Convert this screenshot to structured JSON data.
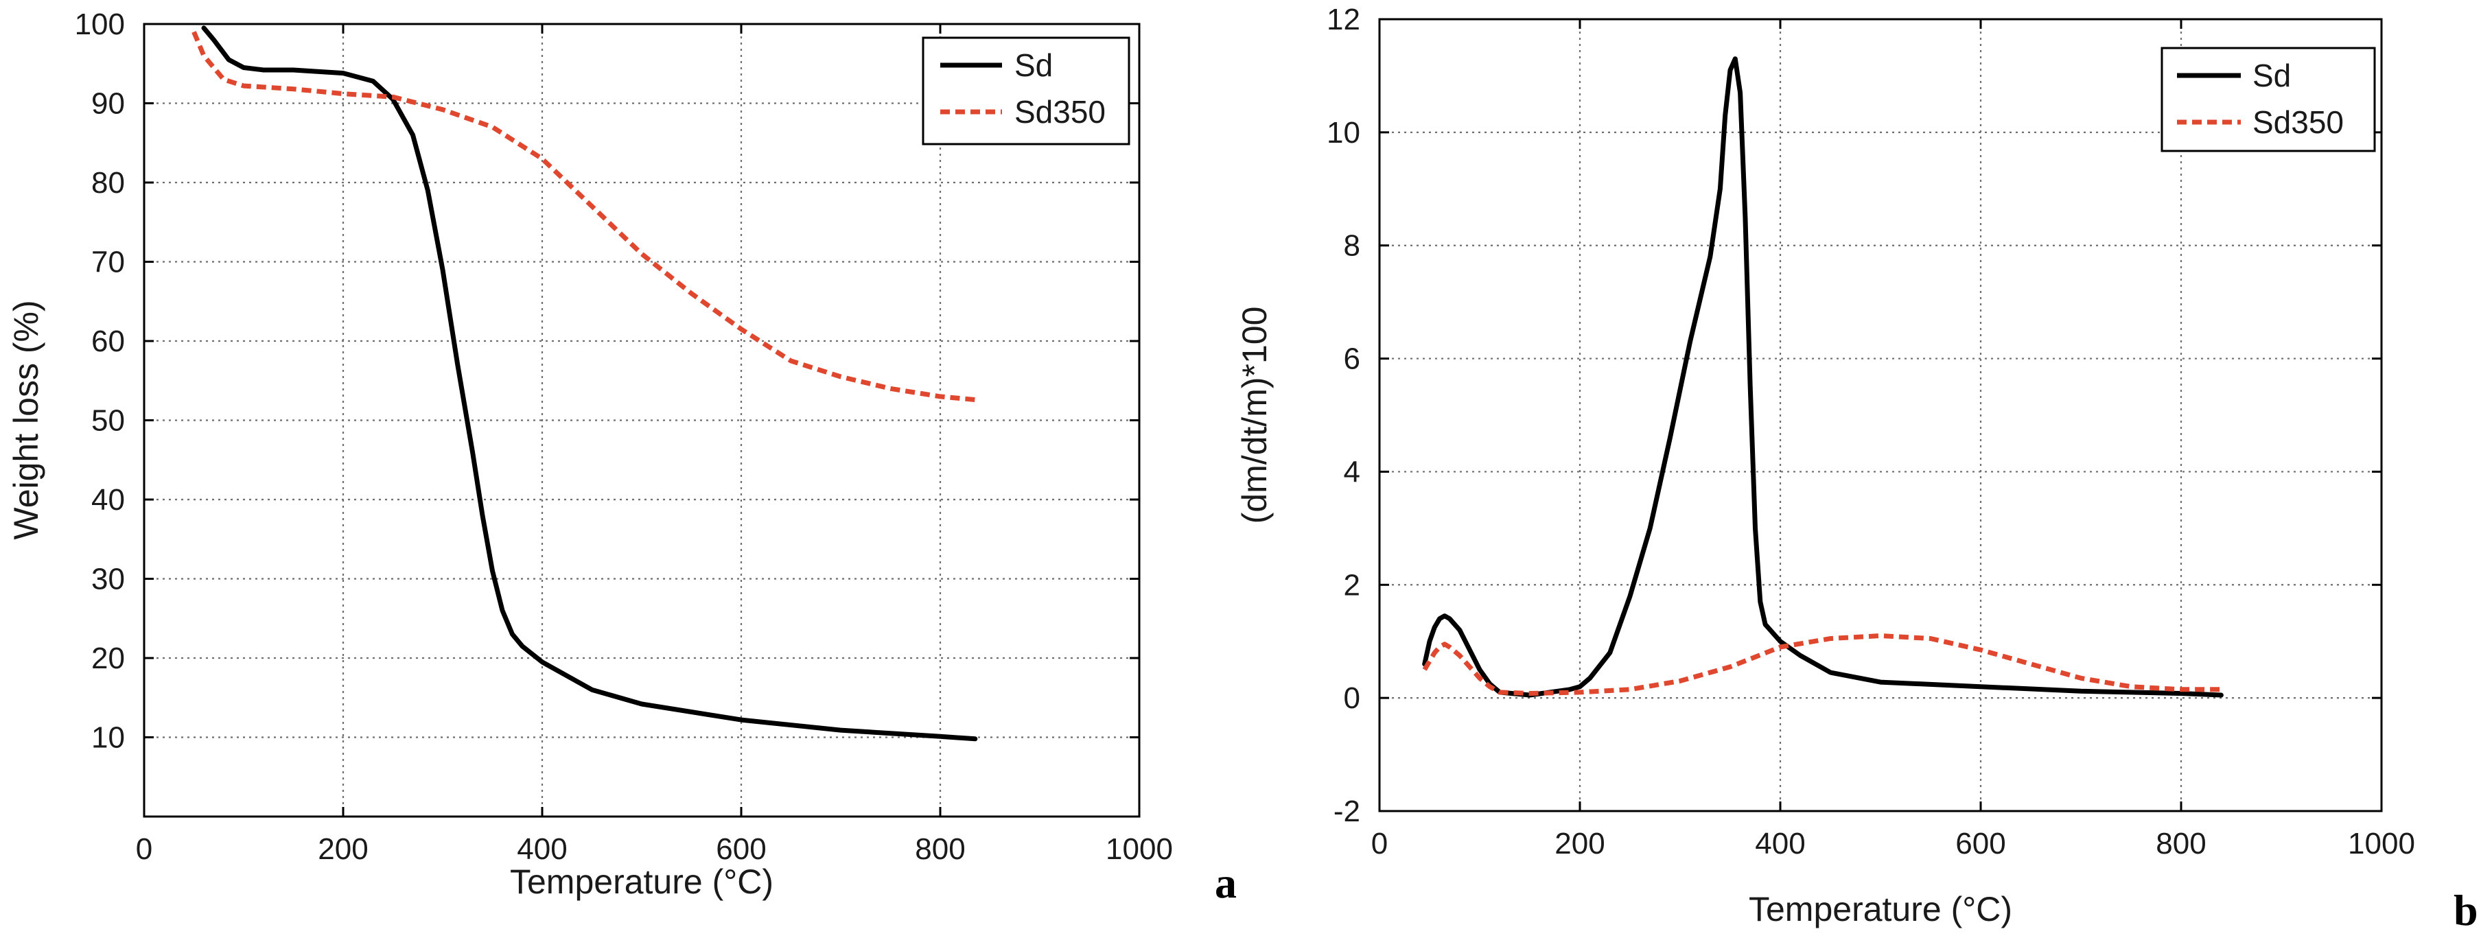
{
  "chart_data": [
    {
      "type": "line",
      "panel_label": "a",
      "title": "",
      "xlabel": "Temperature (°C)",
      "ylabel": "Weight loss (%)",
      "xlim": [
        0,
        1000
      ],
      "ylim": [
        0,
        100
      ],
      "xticks": [
        0,
        200,
        400,
        600,
        800,
        1000
      ],
      "yticks": [
        10,
        20,
        30,
        40,
        50,
        60,
        70,
        80,
        90,
        100
      ],
      "xtick_labels": [
        "0",
        "200",
        "400",
        "600",
        "800",
        "1000"
      ],
      "ytick_labels": [
        "10",
        "20",
        "30",
        "40",
        "50",
        "60",
        "70",
        "80",
        "90",
        "100"
      ],
      "grid": true,
      "legend_position": "top-right",
      "series": [
        {
          "name": "Sd",
          "color": "#000000",
          "style": "solid",
          "x": [
            60,
            70,
            85,
            100,
            120,
            150,
            200,
            230,
            250,
            270,
            285,
            300,
            315,
            330,
            340,
            350,
            360,
            370,
            380,
            400,
            450,
            500,
            600,
            700,
            800,
            835
          ],
          "y": [
            99.5,
            98,
            95.5,
            94.5,
            94.2,
            94.2,
            93.8,
            92.8,
            90.5,
            86,
            79,
            69,
            57,
            46,
            38,
            31,
            26,
            23,
            21.5,
            19.5,
            16,
            14.2,
            12.2,
            10.9,
            10.1,
            9.8
          ]
        },
        {
          "name": "Sd350",
          "color": "#e0472f",
          "style": "dashed",
          "x": [
            50,
            60,
            80,
            100,
            150,
            200,
            250,
            300,
            350,
            400,
            450,
            500,
            550,
            600,
            650,
            700,
            750,
            800,
            835
          ],
          "y": [
            99,
            96,
            93,
            92.2,
            91.8,
            91.2,
            90.8,
            89.2,
            87,
            83,
            77,
            71,
            66,
            61.5,
            57.5,
            55.5,
            54,
            53,
            52.6
          ]
        }
      ]
    },
    {
      "type": "line",
      "panel_label": "b",
      "title": "",
      "xlabel": "Temperature (°C)",
      "ylabel": "(dm/dt/m)*100",
      "xlim": [
        0,
        1000
      ],
      "ylim": [
        -2,
        12
      ],
      "xticks": [
        0,
        200,
        400,
        600,
        800,
        1000
      ],
      "yticks": [
        -2,
        0,
        2,
        4,
        6,
        8,
        10,
        12
      ],
      "xtick_labels": [
        "0",
        "200",
        "400",
        "600",
        "800",
        "1000"
      ],
      "ytick_labels": [
        "-2",
        "0",
        "2",
        "4",
        "6",
        "8",
        "10",
        "12"
      ],
      "grid": true,
      "legend_position": "top-right",
      "series": [
        {
          "name": "Sd",
          "color": "#000000",
          "style": "solid",
          "x": [
            45,
            50,
            55,
            60,
            65,
            70,
            80,
            90,
            100,
            110,
            120,
            150,
            190,
            200,
            210,
            230,
            250,
            270,
            290,
            310,
            330,
            340,
            345,
            350,
            355,
            360,
            365,
            370,
            375,
            380,
            385,
            390,
            400,
            420,
            450,
            500,
            600,
            700,
            800,
            840
          ],
          "y": [
            0.6,
            1.0,
            1.25,
            1.4,
            1.45,
            1.4,
            1.2,
            0.85,
            0.5,
            0.25,
            0.1,
            0.05,
            0.15,
            0.2,
            0.35,
            0.8,
            1.8,
            3.0,
            4.6,
            6.3,
            7.8,
            9.0,
            10.3,
            11.1,
            11.3,
            10.7,
            8.5,
            5.5,
            3.0,
            1.7,
            1.3,
            1.2,
            1.0,
            0.75,
            0.45,
            0.28,
            0.2,
            0.12,
            0.08,
            0.05
          ]
        },
        {
          "name": "Sd350",
          "color": "#e0472f",
          "style": "dashed",
          "x": [
            45,
            55,
            60,
            65,
            70,
            80,
            90,
            100,
            110,
            120,
            150,
            200,
            250,
            300,
            350,
            400,
            450,
            500,
            550,
            600,
            650,
            700,
            750,
            800,
            840
          ],
          "y": [
            0.5,
            0.8,
            0.9,
            0.95,
            0.9,
            0.75,
            0.55,
            0.35,
            0.2,
            0.1,
            0.08,
            0.1,
            0.15,
            0.3,
            0.55,
            0.9,
            1.05,
            1.1,
            1.05,
            0.85,
            0.6,
            0.35,
            0.2,
            0.15,
            0.15
          ]
        }
      ]
    }
  ]
}
